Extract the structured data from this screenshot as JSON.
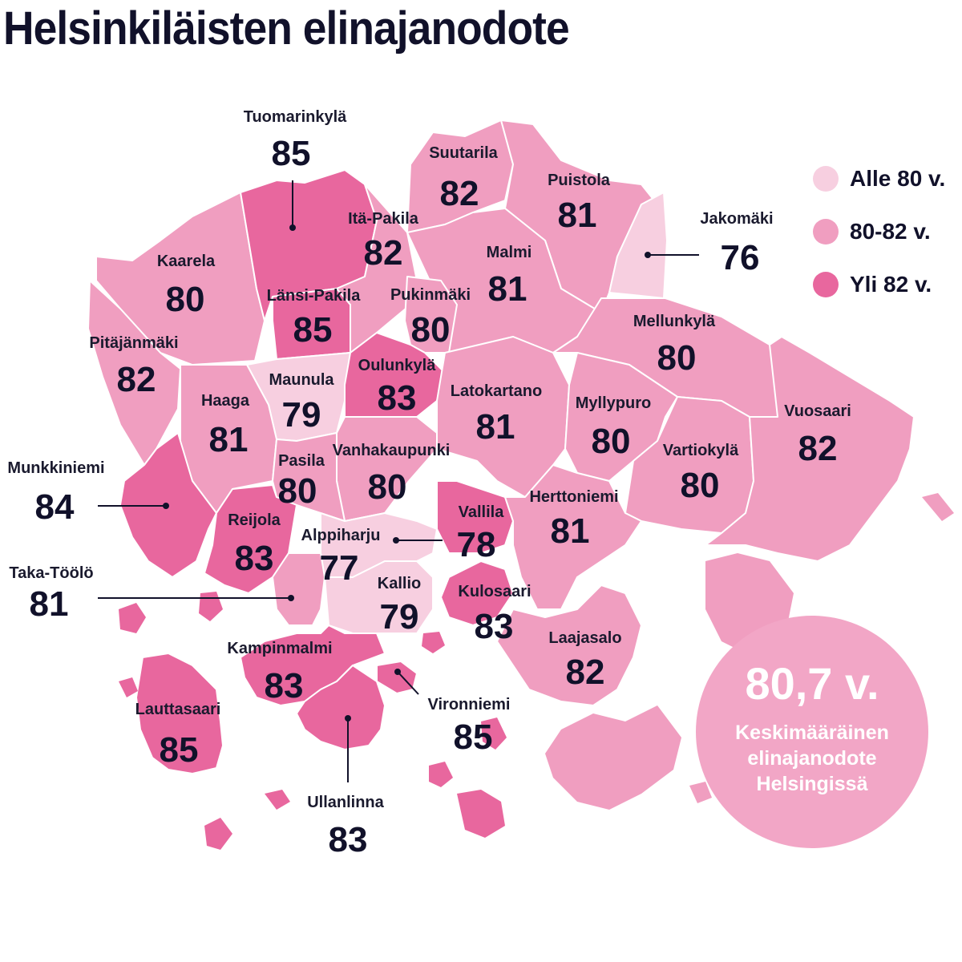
{
  "title": "Helsinkiläisten elinajanodote",
  "legend": [
    {
      "label": "Alle 80 v.",
      "color": "#f7cfe0"
    },
    {
      "label": "80-82 v.",
      "color": "#f09ec0"
    },
    {
      "label": "Yli 82 v.",
      "color": "#e8679e"
    }
  ],
  "average": {
    "value": "80,7 v.",
    "caption": "Keskimääräinen elinajanodote Helsingissä"
  },
  "districts": {
    "tuomarinkyla": {
      "name": "Tuomarinkylä",
      "value": "85",
      "category": "Yli 82 v."
    },
    "suutarila": {
      "name": "Suutarila",
      "value": "82",
      "category": "80-82 v."
    },
    "puistola": {
      "name": "Puistola",
      "value": "81",
      "category": "80-82 v."
    },
    "jakomaki": {
      "name": "Jakomäki",
      "value": "76",
      "category": "Alle 80 v."
    },
    "ita_pakila": {
      "name": "Itä-Pakila",
      "value": "82",
      "category": "80-82 v."
    },
    "kaarela": {
      "name": "Kaarela",
      "value": "80",
      "category": "80-82 v."
    },
    "malmi": {
      "name": "Malmi",
      "value": "81",
      "category": "80-82 v."
    },
    "lansi_pakila": {
      "name": "Länsi-Pakila",
      "value": "85",
      "category": "Yli 82 v."
    },
    "pukinmaki": {
      "name": "Pukinmäki",
      "value": "80",
      "category": "80-82 v."
    },
    "mellunkyla": {
      "name": "Mellunkylä",
      "value": "80",
      "category": "80-82 v."
    },
    "pitajanmaki": {
      "name": "Pitäjänmäki",
      "value": "82",
      "category": "80-82 v."
    },
    "maunula": {
      "name": "Maunula",
      "value": "79",
      "category": "Alle 80 v."
    },
    "oulunkyla": {
      "name": "Oulunkylä",
      "value": "83",
      "category": "Yli 82 v."
    },
    "latokartano": {
      "name": "Latokartano",
      "value": "81",
      "category": "80-82 v."
    },
    "haaga": {
      "name": "Haaga",
      "value": "81",
      "category": "80-82 v."
    },
    "myllypuro": {
      "name": "Myllypuro",
      "value": "80",
      "category": "80-82 v."
    },
    "vuosaari": {
      "name": "Vuosaari",
      "value": "82",
      "category": "80-82 v."
    },
    "vartiokyla": {
      "name": "Vartiokylä",
      "value": "80",
      "category": "80-82 v."
    },
    "vanhakaupunki": {
      "name": "Vanhakaupunki",
      "value": "80",
      "category": "80-82 v."
    },
    "pasila": {
      "name": "Pasila",
      "value": "80",
      "category": "80-82 v."
    },
    "munkkiniemi": {
      "name": "Munkkiniemi",
      "value": "84",
      "category": "Yli 82 v."
    },
    "reijola": {
      "name": "Reijola",
      "value": "83",
      "category": "Yli 82 v."
    },
    "vallila": {
      "name": "Vallila",
      "value": "78",
      "category": "Alle 80 v."
    },
    "herttoniemi": {
      "name": "Herttoniemi",
      "value": "81",
      "category": "80-82 v."
    },
    "alppiharju": {
      "name": "Alppiharju",
      "value": "77",
      "category": "Alle 80 v."
    },
    "taka_toolo": {
      "name": "Taka-Töölö",
      "value": "81",
      "category": "80-82 v."
    },
    "kallio": {
      "name": "Kallio",
      "value": "79",
      "category": "Alle 80 v."
    },
    "kulosaari": {
      "name": "Kulosaari",
      "value": "83",
      "category": "Yli 82 v."
    },
    "laajasalo": {
      "name": "Laajasalo",
      "value": "82",
      "category": "80-82 v."
    },
    "kampinmalmi": {
      "name": "Kampinmalmi",
      "value": "83",
      "category": "Yli 82 v."
    },
    "lauttasaari": {
      "name": "Lauttasaari",
      "value": "85",
      "category": "Yli 82 v."
    },
    "vironniemi": {
      "name": "Vironniemi",
      "value": "85",
      "category": "Yli 82 v."
    },
    "ullanlinna": {
      "name": "Ullanlinna",
      "value": "83",
      "category": "Yli 82 v."
    }
  }
}
